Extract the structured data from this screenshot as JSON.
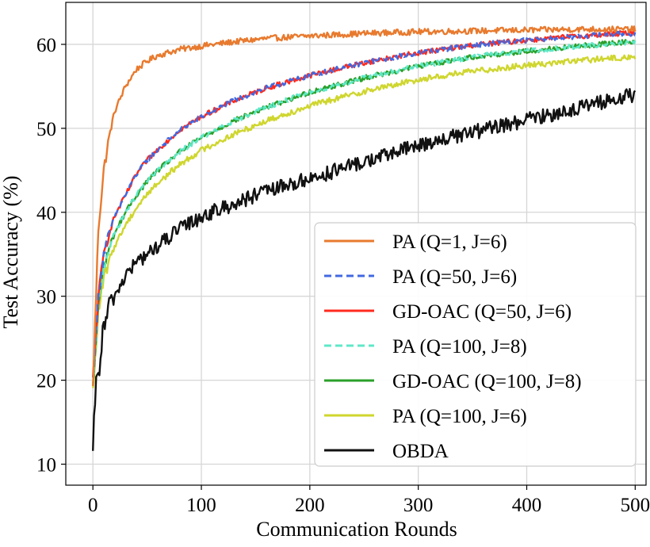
{
  "chart_data": {
    "type": "line",
    "xlabel": "Communication Rounds",
    "ylabel": "Test Accuracy (%)",
    "xlim": [
      -25,
      510
    ],
    "ylim": [
      7.5,
      65
    ],
    "xticks": [
      0,
      100,
      200,
      300,
      400,
      500
    ],
    "yticks": [
      10,
      20,
      30,
      40,
      50,
      60
    ],
    "grid": true,
    "legend_position": "lower-right",
    "series": [
      {
        "name": "PA (Q=1, J=6)",
        "color": "#e87a2e",
        "style": "solid",
        "x": [
          0,
          5,
          10,
          15,
          20,
          30,
          40,
          50,
          60,
          80,
          100,
          130,
          160,
          200,
          250,
          300,
          350,
          400,
          450,
          500
        ],
        "y": [
          19,
          38,
          45,
          49,
          52,
          55,
          57,
          58,
          58.7,
          59.4,
          59.8,
          60.3,
          60.7,
          61.0,
          61.3,
          61.5,
          61.6,
          61.7,
          61.8,
          61.8
        ]
      },
      {
        "name": "PA (Q=50, J=6)",
        "color": "#4169e1",
        "style": "dashed",
        "x": [
          0,
          5,
          10,
          15,
          20,
          30,
          40,
          50,
          60,
          80,
          100,
          130,
          160,
          200,
          250,
          300,
          350,
          400,
          450,
          500
        ],
        "y": [
          20,
          30,
          35,
          37.5,
          39.5,
          42,
          44.5,
          46.2,
          47.5,
          49.8,
          51.4,
          53.3,
          54.8,
          56.3,
          57.8,
          59.0,
          59.9,
          60.5,
          61.0,
          61.3
        ]
      },
      {
        "name": "GD-OAC (Q=50, J=6)",
        "color": "#ff2a1f",
        "style": "solid",
        "x": [
          0,
          5,
          10,
          15,
          20,
          30,
          40,
          50,
          60,
          80,
          100,
          130,
          160,
          200,
          250,
          300,
          350,
          400,
          450,
          500
        ],
        "y": [
          20,
          30,
          35,
          37.5,
          39.5,
          42,
          44.5,
          46.2,
          47.5,
          49.8,
          51.4,
          53.3,
          54.8,
          56.3,
          57.8,
          59.0,
          59.9,
          60.5,
          61.0,
          61.4
        ]
      },
      {
        "name": "PA (Q=100, J=8)",
        "color": "#5fe8c8",
        "style": "dashed",
        "x": [
          0,
          5,
          10,
          15,
          20,
          30,
          40,
          50,
          60,
          80,
          100,
          130,
          160,
          200,
          250,
          300,
          350,
          400,
          450,
          500
        ],
        "y": [
          19,
          29,
          33.5,
          35.8,
          37.5,
          40,
          42,
          43.7,
          45,
          47.2,
          48.9,
          50.9,
          52.5,
          54.3,
          56.0,
          57.4,
          58.5,
          59.2,
          59.8,
          60.2
        ]
      },
      {
        "name": "GD-OAC (Q=100, J=8)",
        "color": "#2aa02a",
        "style": "solid",
        "x": [
          0,
          5,
          10,
          15,
          20,
          30,
          40,
          50,
          60,
          80,
          100,
          130,
          160,
          200,
          250,
          300,
          350,
          400,
          450,
          500
        ],
        "y": [
          19,
          29,
          33.5,
          35.8,
          37.5,
          40,
          42,
          43.7,
          45,
          47.2,
          48.9,
          50.9,
          52.5,
          54.3,
          56.0,
          57.4,
          58.5,
          59.2,
          59.8,
          60.4
        ]
      },
      {
        "name": "PA (Q=100, J=6)",
        "color": "#cfd62e",
        "style": "solid",
        "x": [
          0,
          5,
          10,
          15,
          20,
          30,
          40,
          50,
          60,
          80,
          100,
          130,
          160,
          200,
          250,
          300,
          350,
          400,
          450,
          500
        ],
        "y": [
          18.5,
          28,
          32,
          34.3,
          36,
          38.5,
          40.5,
          42.2,
          43.5,
          45.7,
          47.4,
          49.3,
          50.9,
          52.7,
          54.4,
          55.8,
          56.8,
          57.5,
          58.1,
          58.5
        ]
      },
      {
        "name": "OBDA",
        "color": "#111111",
        "style": "solid",
        "x": [
          0,
          2,
          5,
          8,
          10,
          15,
          20,
          30,
          40,
          50,
          60,
          80,
          100,
          130,
          160,
          200,
          250,
          300,
          350,
          400,
          450,
          500
        ],
        "y": [
          10,
          18,
          21,
          24,
          26,
          29,
          30,
          32.5,
          34,
          35,
          36,
          38,
          39.5,
          41,
          42.5,
          44,
          46,
          48,
          49.5,
          51,
          52.5,
          54
        ]
      }
    ]
  }
}
